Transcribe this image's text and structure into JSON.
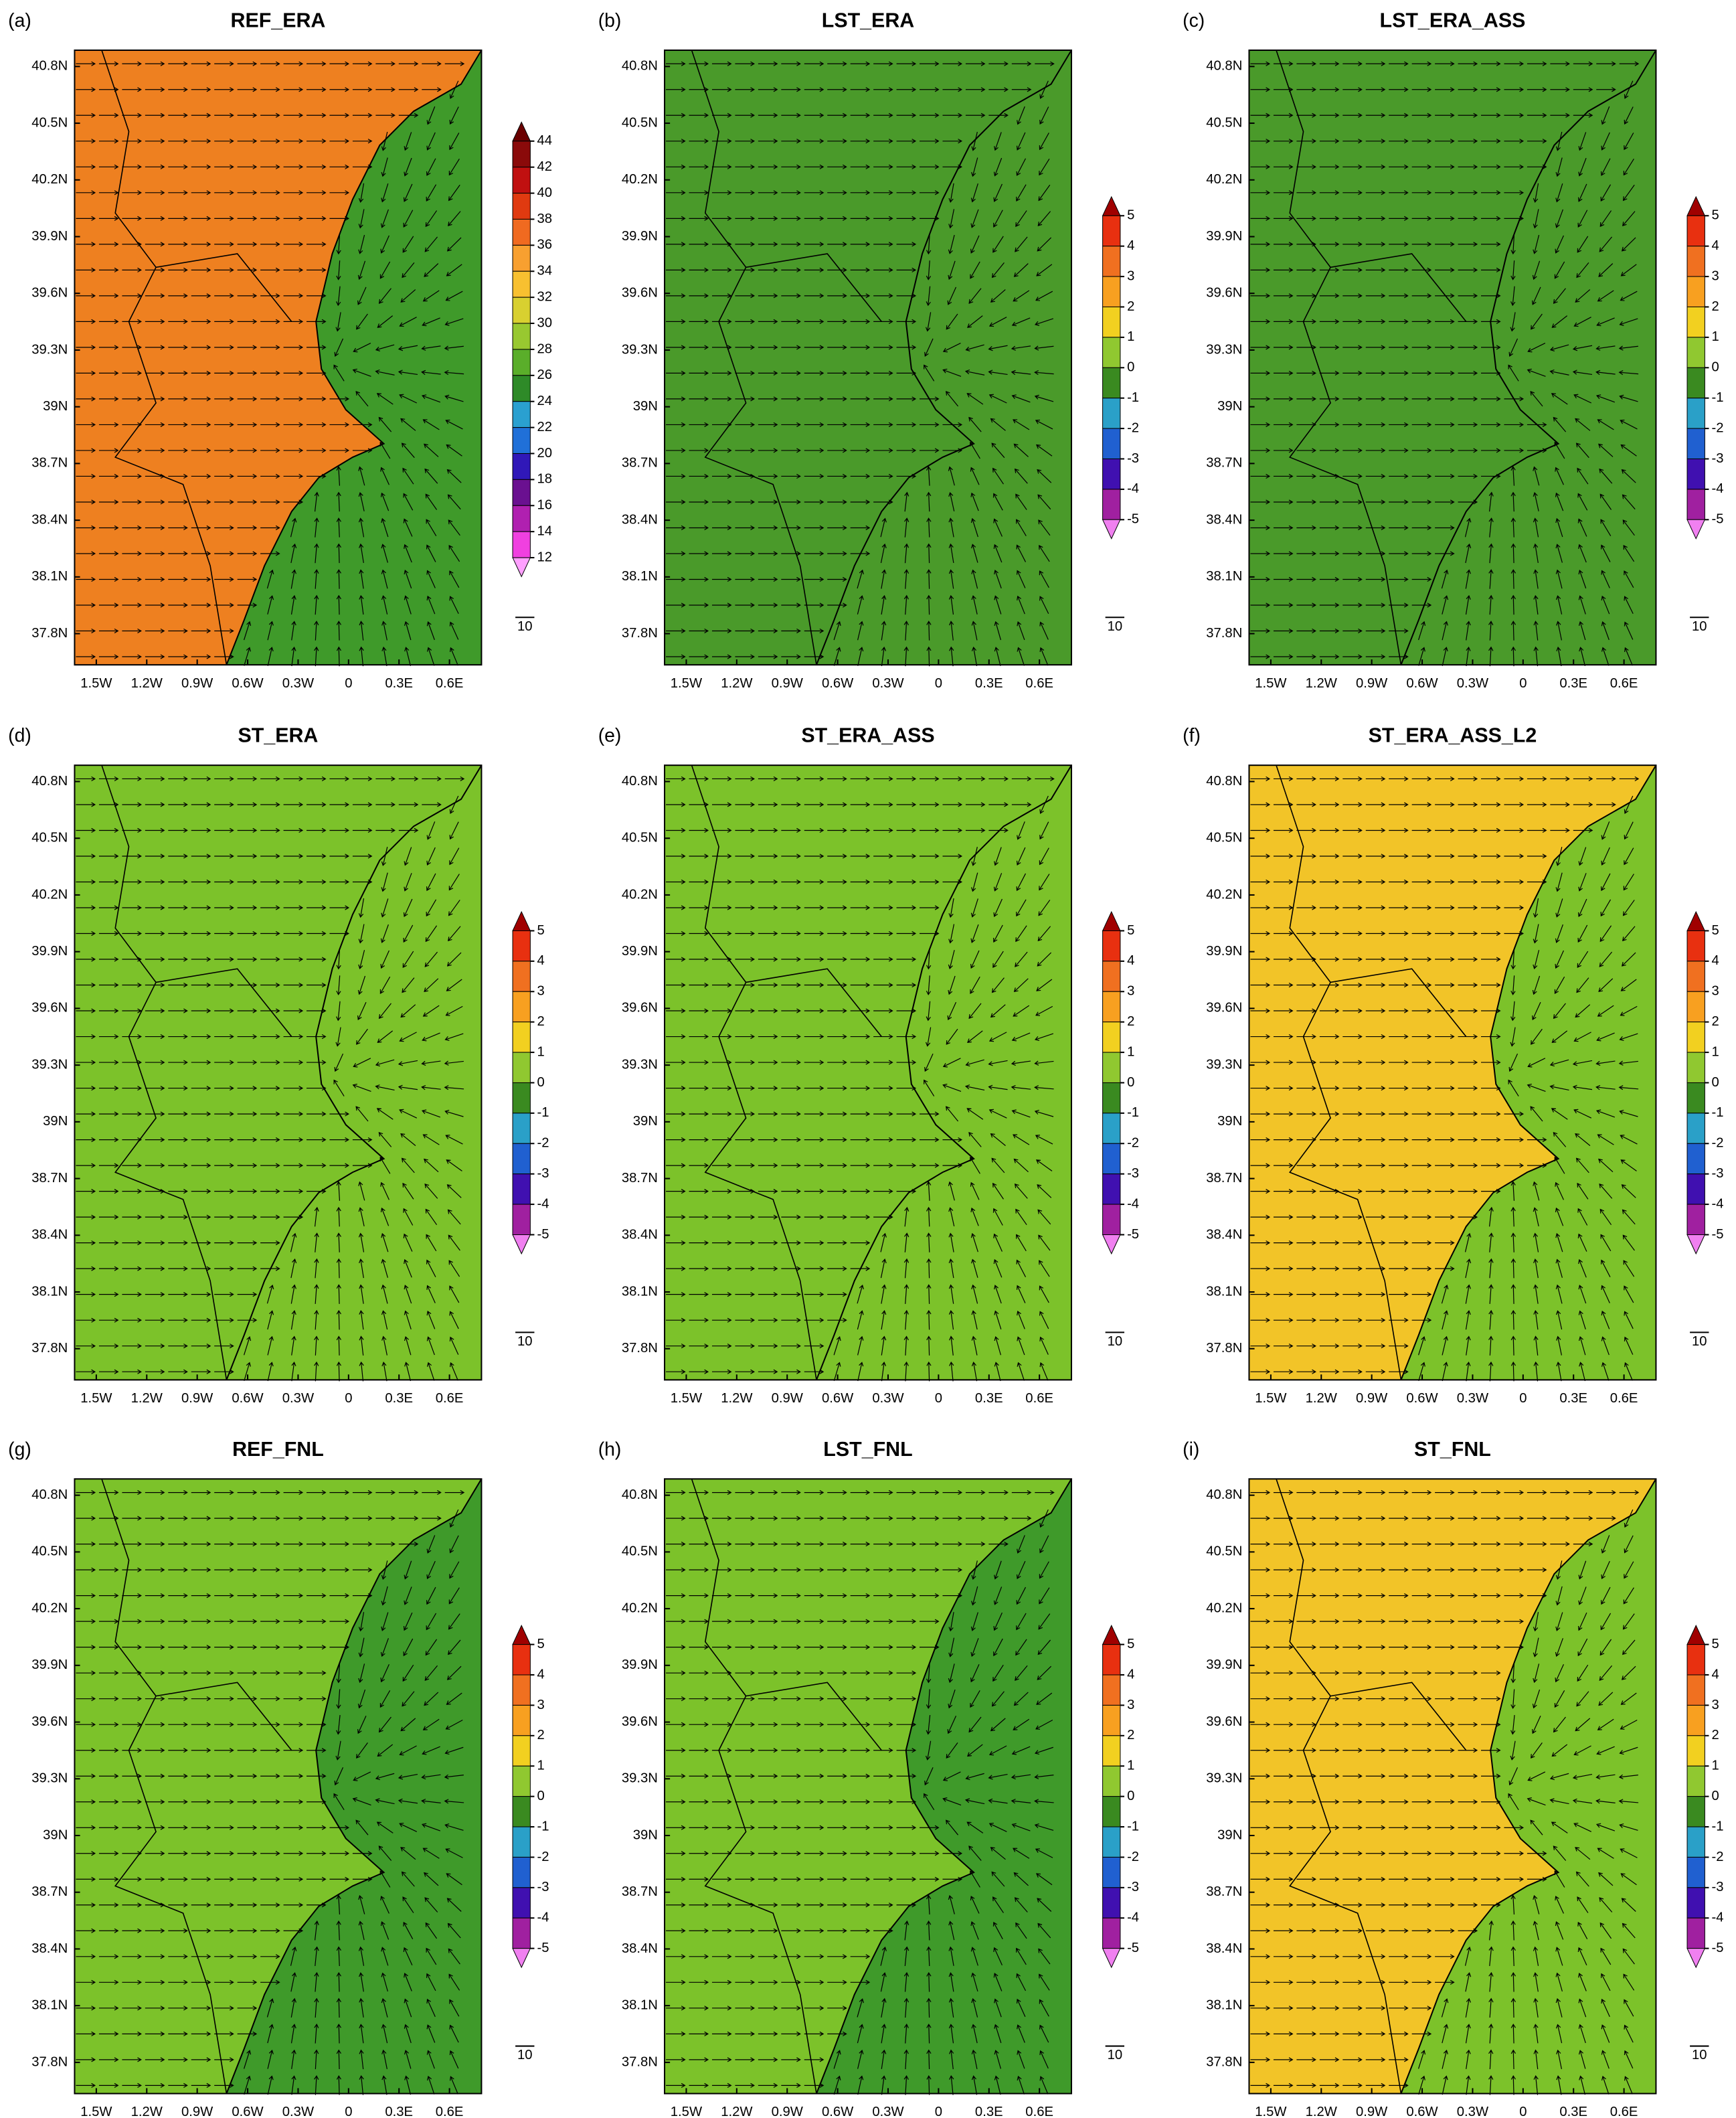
{
  "panels": [
    {
      "label": "(a)",
      "title": "REF_ERA",
      "land_color": "#ee8020",
      "sea_color": "#3f9a2a",
      "colorbar": {
        "levels": [
          44,
          42,
          40,
          38,
          36,
          34,
          32,
          30,
          28,
          26,
          24,
          22,
          20,
          18,
          16,
          14,
          12
        ],
        "colors": [
          "#6a0000",
          "#8a0a0a",
          "#c01010",
          "#e03a10",
          "#f06a20",
          "#f8a030",
          "#f8c030",
          "#d8d030",
          "#98c830",
          "#5aae2a",
          "#2e8a28",
          "#2aa0d0",
          "#2070d8",
          "#3018b8",
          "#6a1090",
          "#b020b0",
          "#f040e0",
          "#ffa0ff"
        ]
      }
    },
    {
      "label": "(b)",
      "title": "LST_ERA",
      "land_color": "#4a9a2a",
      "sea_color": "#4a9a2a",
      "colorbar": {
        "levels": [
          5,
          4,
          3,
          2,
          1,
          0,
          -1,
          -2,
          -3,
          -4,
          -5
        ],
        "colors": [
          "#a00000",
          "#e83010",
          "#f07020",
          "#f8a020",
          "#f2d020",
          "#90c830",
          "#3a8a20",
          "#2aa0c8",
          "#2060d0",
          "#4010b0",
          "#a020a0",
          "#f080f0"
        ]
      }
    },
    {
      "label": "(c)",
      "title": "LST_ERA_ASS",
      "land_color": "#4a9a2a",
      "sea_color": "#4a9a2a",
      "colorbar": {
        "levels": [
          5,
          4,
          3,
          2,
          1,
          0,
          -1,
          -2,
          -3,
          -4,
          -5
        ],
        "colors": [
          "#a00000",
          "#e83010",
          "#f07020",
          "#f8a020",
          "#f2d020",
          "#90c830",
          "#3a8a20",
          "#2aa0c8",
          "#2060d0",
          "#4010b0",
          "#a020a0",
          "#f080f0"
        ]
      }
    },
    {
      "label": "(d)",
      "title": "ST_ERA",
      "land_color": "#7cc22a",
      "sea_color": "#7cc22a",
      "colorbar": {
        "levels": [
          5,
          4,
          3,
          2,
          1,
          0,
          -1,
          -2,
          -3,
          -4,
          -5
        ],
        "colors": [
          "#a00000",
          "#e83010",
          "#f07020",
          "#f8a020",
          "#f2d020",
          "#90c830",
          "#3a8a20",
          "#2aa0c8",
          "#2060d0",
          "#4010b0",
          "#a020a0",
          "#f080f0"
        ]
      }
    },
    {
      "label": "(e)",
      "title": "ST_ERA_ASS",
      "land_color": "#7cc22a",
      "sea_color": "#7cc22a",
      "colorbar": {
        "levels": [
          5,
          4,
          3,
          2,
          1,
          0,
          -1,
          -2,
          -3,
          -4,
          -5
        ],
        "colors": [
          "#a00000",
          "#e83010",
          "#f07020",
          "#f8a020",
          "#f2d020",
          "#90c830",
          "#3a8a20",
          "#2aa0c8",
          "#2060d0",
          "#4010b0",
          "#a020a0",
          "#f080f0"
        ]
      }
    },
    {
      "label": "(f)",
      "title": "ST_ERA_ASS_L2",
      "land_color": "#f2c428",
      "sea_color": "#7cc22a",
      "colorbar": {
        "levels": [
          5,
          4,
          3,
          2,
          1,
          0,
          -1,
          -2,
          -3,
          -4,
          -5
        ],
        "colors": [
          "#a00000",
          "#e83010",
          "#f07020",
          "#f8a020",
          "#f2d020",
          "#90c830",
          "#3a8a20",
          "#2aa0c8",
          "#2060d0",
          "#4010b0",
          "#a020a0",
          "#f080f0"
        ]
      }
    },
    {
      "label": "(g)",
      "title": "REF_FNL",
      "land_color": "#7cc22a",
      "sea_color": "#3f9a2a",
      "colorbar": {
        "levels": [
          5,
          4,
          3,
          2,
          1,
          0,
          -1,
          -2,
          -3,
          -4,
          -5
        ],
        "colors": [
          "#a00000",
          "#e83010",
          "#f07020",
          "#f8a020",
          "#f2d020",
          "#90c830",
          "#3a8a20",
          "#2aa0c8",
          "#2060d0",
          "#4010b0",
          "#a020a0",
          "#f080f0"
        ]
      }
    },
    {
      "label": "(h)",
      "title": "LST_FNL",
      "land_color": "#7cc22a",
      "sea_color": "#3f9a2a",
      "colorbar": {
        "levels": [
          5,
          4,
          3,
          2,
          1,
          0,
          -1,
          -2,
          -3,
          -4,
          -5
        ],
        "colors": [
          "#a00000",
          "#e83010",
          "#f07020",
          "#f8a020",
          "#f2d020",
          "#90c830",
          "#3a8a20",
          "#2aa0c8",
          "#2060d0",
          "#4010b0",
          "#a020a0",
          "#f080f0"
        ]
      }
    },
    {
      "label": "(i)",
      "title": "ST_FNL",
      "land_color": "#f2c428",
      "sea_color": "#7cc22a",
      "colorbar": {
        "levels": [
          5,
          4,
          3,
          2,
          1,
          0,
          -1,
          -2,
          -3,
          -4,
          -5
        ],
        "colors": [
          "#a00000",
          "#e83010",
          "#f07020",
          "#f8a020",
          "#f2d020",
          "#90c830",
          "#3a8a20",
          "#2aa0c8",
          "#2060d0",
          "#4010b0",
          "#a020a0",
          "#f080f0"
        ]
      }
    }
  ],
  "lat_labels": [
    "40.8N",
    "40.5N",
    "40.2N",
    "39.9N",
    "39.6N",
    "39.3N",
    "39N",
    "38.7N",
    "38.4N",
    "38.1N",
    "37.8N"
  ],
  "lon_labels": [
    "1.5W",
    "1.2W",
    "0.9W",
    "0.6W",
    "0.3W",
    "0",
    "0.3E",
    "0.6E"
  ],
  "vector_reference": "10"
}
